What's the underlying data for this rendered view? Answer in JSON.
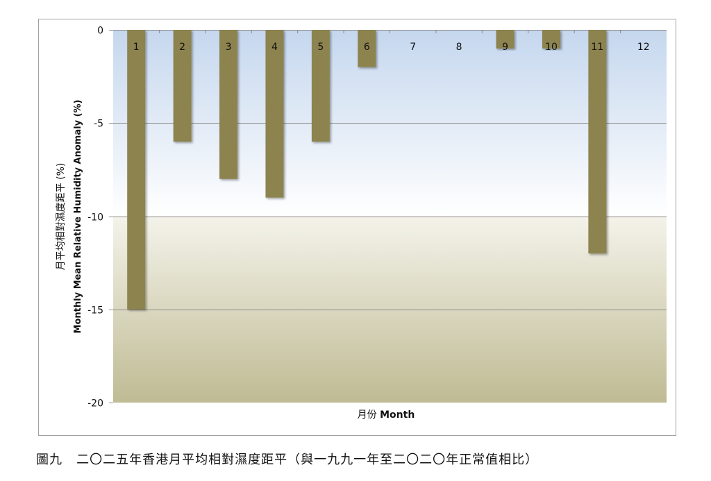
{
  "chart_data": {
    "type": "bar",
    "categories": [
      "1",
      "2",
      "3",
      "4",
      "5",
      "6",
      "7",
      "8",
      "9",
      "10",
      "11",
      "12"
    ],
    "values": [
      -15,
      -6,
      -8,
      -9,
      -6,
      -2,
      0,
      0,
      -1,
      -1,
      -12,
      0
    ],
    "xlabel_zh": "月份",
    "xlabel_en": "Month",
    "ylabel_zh": "月平均相對濕度距平 (%)",
    "ylabel_en": "Monthly Mean Relative Humidity Anomaly (%)",
    "ylim": [
      -20,
      0
    ],
    "yticks": [
      "0",
      "-5",
      "-10",
      "-15",
      "-20"
    ],
    "grid": true,
    "bar_color": "#8c8350",
    "background_gradient": [
      "#c5d7ee",
      "#ffffff",
      "#c1bd97"
    ]
  },
  "caption": {
    "figure_number": "圖九",
    "title": "二〇二五年香港月平均相對濕度距平（與一九九一年至二〇二〇年正常值相比）"
  }
}
